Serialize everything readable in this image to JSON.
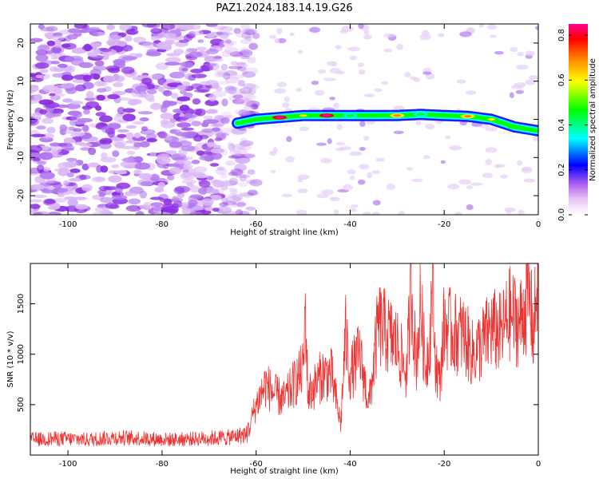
{
  "figure": {
    "title": "PAZ1.2024.183.14.19.G26"
  },
  "chart_data": [
    {
      "type": "heatmap",
      "xlabel": "Height of straight line (km)",
      "ylabel": "Frequency (Hz)",
      "xlim": [
        -108,
        0
      ],
      "ylim": [
        -25,
        25
      ],
      "xticks": [
        -100,
        -80,
        -60,
        -40,
        -20,
        0
      ],
      "yticks": [
        -20,
        -10,
        0,
        10,
        20
      ],
      "grid": false,
      "colorbar": {
        "label": "Normalized spectral amplitude",
        "range": [
          0,
          0.85
        ],
        "ticks": [
          0.0,
          0.2,
          0.4,
          0.6,
          0.8
        ],
        "colormap": [
          "#ffffff",
          "#e9c8f5",
          "#c27ef0",
          "#7f00ff",
          "#0000ff",
          "#00ffff",
          "#00ff00",
          "#ffff00",
          "#ff8000",
          "#ff0000",
          "#ff00a0"
        ]
      },
      "regions": {
        "noise_band": {
          "x": [
            -108,
            -64
          ],
          "y": [
            -25,
            25
          ],
          "amplitude": [
            0.0,
            0.1
          ]
        },
        "signal_track": {
          "x": [
            -64,
            -60,
            -55,
            -50,
            -45,
            -40,
            -35,
            -30,
            -25,
            -20,
            -15,
            -10,
            -5,
            0
          ],
          "frequency": [
            -1.0,
            0.0,
            0.5,
            1.0,
            1.0,
            1.0,
            1.0,
            1.0,
            1.3,
            1.0,
            0.8,
            0.0,
            -2.0,
            -3.0
          ],
          "peak_amplitude": [
            0.25,
            0.45,
            0.85,
            0.6,
            0.85,
            0.5,
            0.55,
            0.7,
            0.5,
            0.55,
            0.65,
            0.6,
            0.55,
            0.45
          ]
        },
        "weak_noise": {
          "x": [
            -60,
            0
          ],
          "y": [
            -25,
            25
          ],
          "amplitude": [
            0.0,
            0.05
          ]
        }
      }
    },
    {
      "type": "line",
      "xlabel": "Height of straight line (km)",
      "ylabel": "SNR (10 * v/v)",
      "xlim": [
        -108,
        0
      ],
      "ylim": [
        0,
        1900
      ],
      "xticks": [
        -100,
        -80,
        -60,
        -40,
        -20,
        0
      ],
      "yticks": [
        500,
        1000,
        1500
      ],
      "grid": false,
      "line_color": "#ee3333",
      "series": [
        {
          "x": [
            -108,
            -102,
            -96,
            -90,
            -84,
            -78,
            -72,
            -66,
            -62,
            -60,
            -58,
            -56,
            -54,
            -52,
            -50,
            -49.5,
            -49,
            -48,
            -46,
            -44,
            -42,
            -41,
            -40,
            -38,
            -36,
            -34,
            -32,
            -30,
            -28,
            -27,
            -26,
            -25,
            -24,
            -23,
            -22.5,
            -22,
            -21,
            -20,
            -18,
            -16,
            -14,
            -12,
            -10,
            -8,
            -6,
            -4,
            -2,
            -1,
            0
          ],
          "y": [
            150,
            160,
            150,
            170,
            160,
            150,
            160,
            170,
            200,
            500,
            700,
            600,
            550,
            700,
            850,
            1450,
            600,
            650,
            800,
            800,
            300,
            1200,
            800,
            1000,
            500,
            1300,
            1200,
            1100,
            800,
            1700,
            900,
            1500,
            850,
            1200,
            1850,
            1000,
            700,
            1300,
            1200,
            1200,
            1000,
            1100,
            1250,
            1200,
            1400,
            1300,
            1600,
            1200,
            1900
          ]
        }
      ]
    }
  ]
}
